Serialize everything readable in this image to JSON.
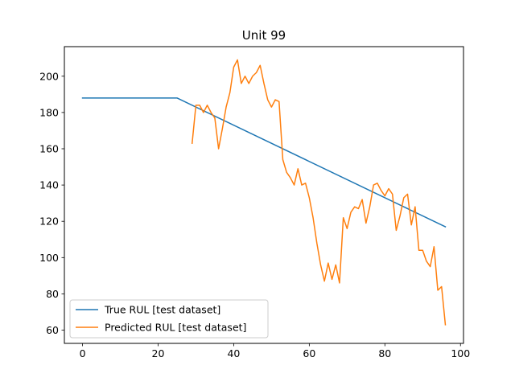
{
  "chart_data": {
    "type": "line",
    "title": "Unit 99",
    "xlabel": "",
    "ylabel": "",
    "xlim": [
      -4.8,
      100.8
    ],
    "ylim": [
      52.7,
      216.3
    ],
    "xticks": [
      0,
      20,
      40,
      60,
      80,
      100
    ],
    "yticks": [
      60,
      80,
      100,
      120,
      140,
      160,
      180,
      200
    ],
    "grid": false,
    "legend_position": "lower-left",
    "series": [
      {
        "name": "True RUL [test dataset]",
        "color": "#1f77b4",
        "x": [
          0,
          25,
          96
        ],
        "y": [
          188,
          188,
          117
        ]
      },
      {
        "name": "Predicted RUL [test dataset]",
        "color": "#ff7f0e",
        "x": [
          29,
          30,
          31,
          32,
          33,
          34,
          35,
          36,
          37,
          38,
          39,
          40,
          41,
          42,
          43,
          44,
          45,
          46,
          47,
          48,
          49,
          50,
          51,
          52,
          53,
          54,
          55,
          56,
          57,
          58,
          59,
          60,
          61,
          62,
          63,
          64,
          65,
          66,
          67,
          68,
          69,
          70,
          71,
          72,
          73,
          74,
          75,
          76,
          77,
          78,
          79,
          80,
          81,
          82,
          83,
          84,
          85,
          86,
          87,
          88,
          89,
          90,
          91,
          92,
          93,
          94,
          95,
          96
        ],
        "y": [
          163,
          184,
          184,
          180,
          184,
          180,
          177,
          160,
          171,
          183,
          191,
          205,
          209,
          196,
          200,
          196,
          200,
          202,
          206,
          196,
          187,
          183,
          187,
          186,
          154,
          147,
          144,
          140,
          149,
          140,
          141,
          133,
          122,
          108,
          96,
          87,
          97,
          88,
          96,
          86,
          122,
          116,
          125,
          128,
          127,
          132,
          119,
          128,
          140,
          141,
          137,
          134,
          138,
          135,
          115,
          123,
          133,
          135,
          118,
          128,
          104,
          104,
          98,
          95,
          106,
          82,
          84,
          63
        ]
      }
    ]
  }
}
